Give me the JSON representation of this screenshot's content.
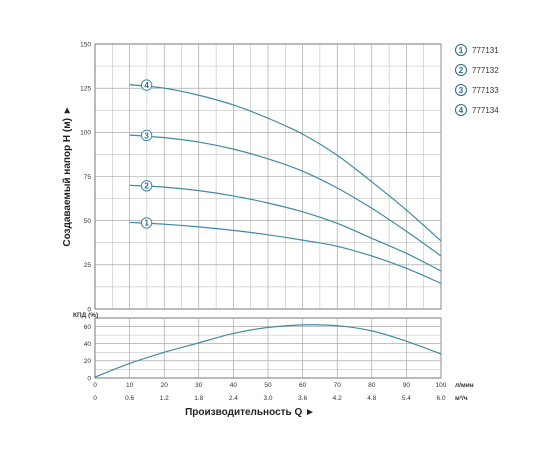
{
  "chart_data": {
    "type": "line",
    "head_chart": {
      "ylabel": "Создаваемый напор H (м) ►",
      "ylim": [
        0,
        150
      ],
      "yticks": [
        0,
        25,
        50,
        75,
        100,
        125,
        150
      ],
      "series": [
        {
          "name": "777131",
          "marker": "1",
          "x": [
            10,
            20,
            30,
            40,
            50,
            60,
            70,
            80,
            90,
            100
          ],
          "values": [
            49,
            48,
            46.5,
            44.5,
            42,
            39,
            35.5,
            30,
            23,
            14.5
          ]
        },
        {
          "name": "777132",
          "marker": "2",
          "x": [
            10,
            20,
            30,
            40,
            50,
            60,
            70,
            80,
            90,
            100
          ],
          "values": [
            70,
            69,
            67,
            64,
            60,
            55,
            48.5,
            40,
            31.5,
            21.5
          ]
        },
        {
          "name": "777133",
          "marker": "3",
          "x": [
            10,
            20,
            30,
            40,
            50,
            60,
            70,
            80,
            90,
            100
          ],
          "values": [
            98.5,
            97,
            94.5,
            90.5,
            85,
            78,
            68.5,
            57,
            44,
            30
          ]
        },
        {
          "name": "777134",
          "marker": "4",
          "x": [
            10,
            20,
            30,
            40,
            50,
            60,
            70,
            80,
            90,
            100
          ],
          "values": [
            127,
            125,
            121,
            115.5,
            108,
            99,
            87,
            72,
            56,
            38.5
          ]
        }
      ]
    },
    "efficiency_chart": {
      "ylabel": "КПД (%)",
      "ylim": [
        0,
        70
      ],
      "yticks": [
        0,
        20,
        40,
        60
      ],
      "x": [
        0,
        10,
        20,
        30,
        40,
        50,
        60,
        70,
        80,
        90,
        100
      ],
      "values": [
        1,
        17,
        30,
        41,
        52,
        59,
        62,
        61,
        55,
        43,
        28
      ]
    },
    "x_axis": {
      "xlabel": "Производительность Q ►",
      "xlim": [
        0,
        100
      ],
      "primary_ticks": [
        "0",
        "10",
        "20",
        "30",
        "40",
        "50",
        "60",
        "70",
        "80",
        "90",
        "100"
      ],
      "primary_unit": "л/мин",
      "secondary_ticks": [
        "0",
        "0.6",
        "1.2",
        "1.8",
        "2.4",
        "3.0",
        "3.6",
        "4.2",
        "4.8",
        "5.4",
        "6.0"
      ],
      "secondary_unit": "м³/ч"
    },
    "legend": {
      "placement": "right",
      "entries": [
        {
          "marker": "1",
          "label": "777131"
        },
        {
          "marker": "2",
          "label": "777132"
        },
        {
          "marker": "3",
          "label": "777133"
        },
        {
          "marker": "4",
          "label": "777134"
        }
      ]
    },
    "grid": true,
    "colors": {
      "line": "#3f8aa6",
      "grid": "#9a9a9a",
      "marker_stroke": "#3f8aa6",
      "legend_stroke": "#2b6c8a"
    }
  }
}
